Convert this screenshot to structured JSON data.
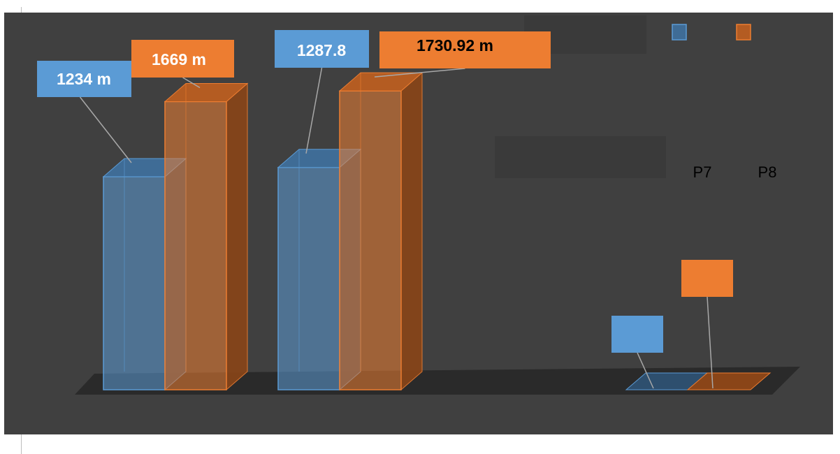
{
  "chart_data": {
    "type": "bar",
    "categories": [
      "",
      "",
      ""
    ],
    "series": [
      {
        "name": "P7",
        "values": [
          1234,
          1287.8,
          0
        ],
        "labels": [
          "1234 m",
          "1287.8",
          ""
        ]
      },
      {
        "name": "P8",
        "values": [
          1669,
          1730.92,
          0
        ],
        "labels": [
          "1669 m",
          "1730.92 m",
          ""
        ]
      }
    ],
    "ylim": [
      0,
      1800
    ],
    "grid": false,
    "legend_position": "top-right",
    "style": "3d-clustered-column"
  },
  "colors": {
    "background": "#404040",
    "p7": "#5b9bd5",
    "p8": "#ed7d31",
    "floor": "#2a2a2a"
  }
}
